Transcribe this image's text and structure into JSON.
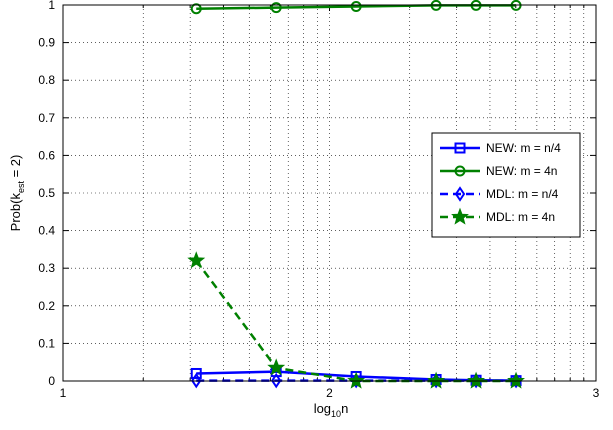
{
  "chart_data": {
    "type": "line",
    "xlabel": "log",
    "xlabel_sub": "10",
    "xlabel_tail": "n",
    "ylabel": "Prob(k",
    "ylabel_sub": "est",
    "ylabel_tail": " = 2)",
    "xlim": [
      1,
      3
    ],
    "ylim": [
      0,
      1
    ],
    "x_scale": "log10",
    "x_ticks": [
      1,
      2,
      3
    ],
    "x_tick_labels": [
      "1",
      "2",
      "3"
    ],
    "x_minor_ticks": [
      20,
      30,
      40,
      50,
      60,
      70,
      80,
      90,
      200,
      300,
      400,
      500,
      600,
      700,
      800,
      900
    ],
    "y_ticks": [
      0,
      0.1,
      0.2,
      0.3,
      0.4,
      0.5,
      0.6,
      0.7,
      0.8,
      0.9,
      1
    ],
    "y_tick_labels": [
      "0",
      "0.1",
      "0.2",
      "0.3",
      "0.4",
      "0.5",
      "0.6",
      "0.7",
      "0.8",
      "0.9",
      "1"
    ],
    "grid": true,
    "legend_position": "right",
    "series": [
      {
        "name": "NEW: m = n/4",
        "color": "#0000ff",
        "linestyle": "solid",
        "marker": "square",
        "x": [
          1.5,
          1.8,
          2.1,
          2.4,
          2.55,
          2.7
        ],
        "y": [
          0.02,
          0.025,
          0.012,
          0.004,
          0.002,
          0.001
        ]
      },
      {
        "name": "NEW: m = 4n",
        "color": "#008000",
        "linestyle": "solid",
        "marker": "circle",
        "x": [
          1.5,
          1.8,
          2.1,
          2.4,
          2.55,
          2.7
        ],
        "y": [
          0.99,
          0.993,
          0.996,
          0.999,
          0.999,
          0.999
        ]
      },
      {
        "name": "MDL: m = n/4",
        "color": "#0000ff",
        "linestyle": "dashed",
        "marker": "diamond",
        "x": [
          1.5,
          1.8,
          2.1,
          2.4,
          2.55,
          2.7
        ],
        "y": [
          0.001,
          0.001,
          0.001,
          0.001,
          0.001,
          0.001
        ]
      },
      {
        "name": "MDL: m = 4n",
        "color": "#008000",
        "linestyle": "dashed",
        "marker": "star",
        "x": [
          1.5,
          1.8,
          2.1,
          2.4,
          2.55,
          2.7
        ],
        "y": [
          0.32,
          0.035,
          0.0,
          0.0,
          0.0,
          0.0
        ]
      }
    ]
  }
}
